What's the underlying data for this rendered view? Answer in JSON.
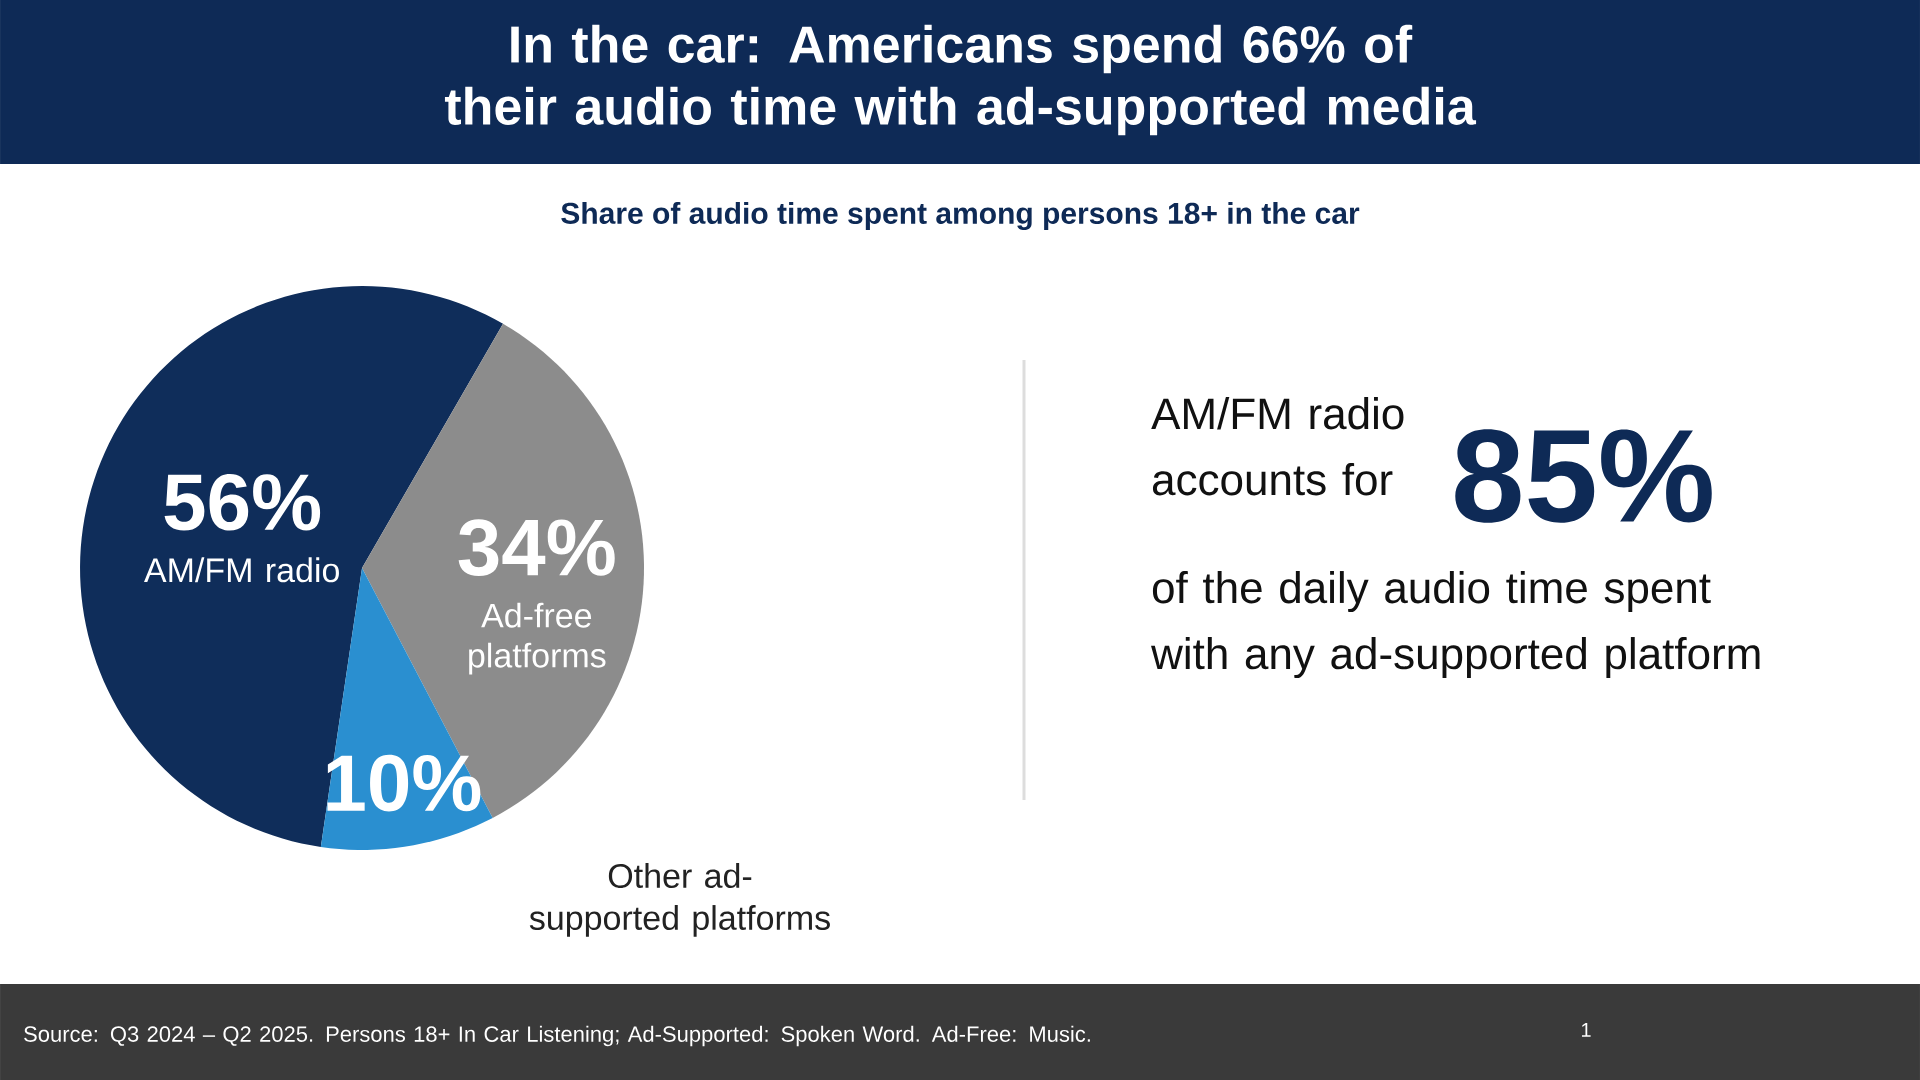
{
  "chart_data": {
    "type": "pie",
    "title": "In the car: Americans spend 66% of their audio time with ad-supported media",
    "subtitle": "Share of audio time spent among persons 18+ in the car",
    "categories": [
      "AM/FM radio",
      "Ad-free platforms",
      "Other ad-supported platforms"
    ],
    "values": [
      56,
      34,
      10
    ],
    "colors": [
      "#0f2d5a",
      "#8c8c8c",
      "#2a8fd0"
    ],
    "value_labels": [
      "56%",
      "34%",
      "10%"
    ],
    "annotations": [
      "AM/FM radio accounts for",
      "85%",
      "of the daily audio time spent with any ad-supported platform",
      "Source: Q3 2024 – Q2 2025. Persons 18+ In Car Listening; Ad-Supported: Spoken Word. Ad-Free: Music.",
      "1"
    ]
  }
}
